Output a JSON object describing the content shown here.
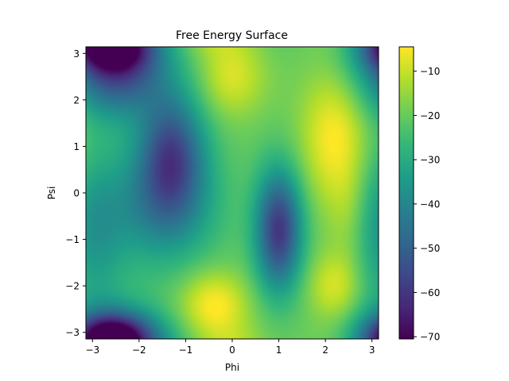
{
  "chart_data": {
    "type": "heatmap",
    "title": "Free Energy Surface",
    "xlabel": "Phi",
    "ylabel": "Psi",
    "xlim": [
      -3.14159,
      3.14159
    ],
    "ylim": [
      -3.14159,
      3.14159
    ],
    "x_ticks": [
      -3,
      -2,
      -1,
      0,
      1,
      2,
      3
    ],
    "x_tick_labels": [
      "−3",
      "−2",
      "−1",
      "0",
      "1",
      "2",
      "3"
    ],
    "y_ticks": [
      -3,
      -2,
      -1,
      0,
      1,
      2,
      3
    ],
    "y_tick_labels": [
      "−3",
      "−2",
      "−1",
      "0",
      "1",
      "2",
      "3"
    ],
    "colormap": "viridis",
    "color_range": [
      -70.5,
      -4.5
    ],
    "colorbar_ticks": [
      -70,
      -60,
      -50,
      -40,
      -30,
      -20,
      -10
    ],
    "colorbar_tick_labels": [
      "−70",
      "−60",
      "−50",
      "−40",
      "−30",
      "−20",
      "−10"
    ],
    "surface": {
      "baseline": -20,
      "basins": [
        {
          "phi": -2.5,
          "psi": 2.7,
          "depth": -38,
          "sigma_phi": 0.75,
          "sigma_psi": 0.7
        },
        {
          "phi": -1.3,
          "psi": 0.9,
          "depth": -32,
          "sigma_phi": 0.5,
          "sigma_psi": 0.9
        },
        {
          "phi": -1.5,
          "psi": -0.3,
          "depth": -20,
          "sigma_phi": 0.8,
          "sigma_psi": 0.9
        },
        {
          "phi": 1.0,
          "psi": -0.8,
          "depth": -40,
          "sigma_phi": 0.35,
          "sigma_psi": 0.9
        },
        {
          "phi": -2.6,
          "psi": -3.1,
          "depth": -38,
          "sigma_phi": 0.6,
          "sigma_psi": 0.35
        },
        {
          "phi": -3.0,
          "psi": -0.8,
          "depth": -15,
          "sigma_phi": 0.5,
          "sigma_psi": 1.2
        }
      ],
      "peaks": [
        {
          "phi": 2.2,
          "psi": 1.2,
          "height": 16,
          "sigma_phi": 0.5,
          "sigma_psi": 1.0
        },
        {
          "phi": 2.2,
          "psi": -2.0,
          "height": 12,
          "sigma_phi": 0.4,
          "sigma_psi": 0.5
        },
        {
          "phi": -0.4,
          "psi": -2.4,
          "height": 16,
          "sigma_phi": 0.5,
          "sigma_psi": 0.5
        },
        {
          "phi": 0.0,
          "psi": 2.5,
          "height": 12,
          "sigma_phi": 0.5,
          "sigma_psi": 0.6
        },
        {
          "phi": 2.5,
          "psi": -0.5,
          "height": 6,
          "sigma_phi": 0.3,
          "sigma_psi": 0.8
        }
      ]
    }
  }
}
